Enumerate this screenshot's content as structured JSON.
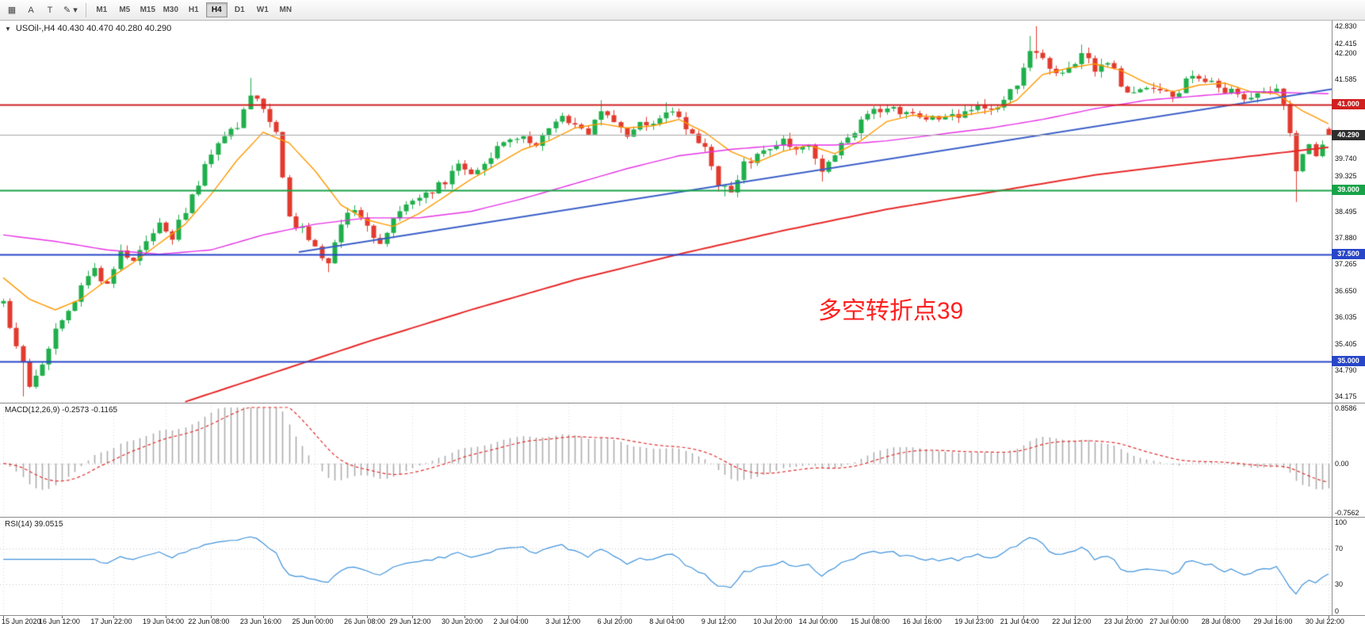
{
  "toolbar": {
    "tools": [
      {
        "name": "indicators-icon",
        "glyph": "▦"
      },
      {
        "name": "annotation-a-button",
        "glyph": "A"
      },
      {
        "name": "text-tool-button",
        "glyph": "T"
      },
      {
        "name": "draw-tools-button",
        "glyph": "✎ ▾"
      }
    ],
    "timeframes": [
      {
        "label": "M1",
        "active": false
      },
      {
        "label": "M5",
        "active": false
      },
      {
        "label": "M15",
        "active": false
      },
      {
        "label": "M30",
        "active": false
      },
      {
        "label": "H1",
        "active": false
      },
      {
        "label": "H4",
        "active": true
      },
      {
        "label": "D1",
        "active": false
      },
      {
        "label": "W1",
        "active": false
      },
      {
        "label": "MN",
        "active": false
      }
    ]
  },
  "chart": {
    "one_click_glyph": "▼",
    "title": "USOil-,H4 40.430 40.470 40.280 40.290",
    "annotation": {
      "text": "多空转折点39",
      "color": "#FF1F1F"
    },
    "price_axis": {
      "min": 34.03,
      "max": 42.96,
      "ticks": [
        "42.830",
        "42.415",
        "42.200",
        "41.585",
        "39.740",
        "39.325",
        "38.495",
        "37.880",
        "37.265",
        "36.650",
        "36.035",
        "35.405",
        "34.790",
        "34.175"
      ]
    },
    "current_price": {
      "value": 40.29,
      "label": "40.290",
      "badge_bg": "#2e2e2e",
      "line_color": "#a8a8a8"
    }
  },
  "chart_data": {
    "type": "candlestick",
    "symbol": "USOil-",
    "timeframe": "H4",
    "bars": 205,
    "seed": 20,
    "noise": 0.11,
    "last_ohlc": {
      "open": 40.43,
      "high": 40.47,
      "low": 40.28,
      "close": 40.29
    },
    "style": {
      "up_color": "#1FAF4B",
      "down_color": "#E23A2E"
    },
    "price_path": [
      [
        0,
        36.35
      ],
      [
        2,
        35.3
      ],
      [
        4,
        34.45
      ],
      [
        6,
        35.0
      ],
      [
        9,
        36.0
      ],
      [
        12,
        36.7
      ],
      [
        14,
        37.15
      ],
      [
        16,
        36.8
      ],
      [
        18,
        37.5
      ],
      [
        20,
        37.3
      ],
      [
        22,
        37.8
      ],
      [
        24,
        38.15
      ],
      [
        26,
        37.9
      ],
      [
        28,
        38.5
      ],
      [
        30,
        39.1
      ],
      [
        32,
        39.9
      ],
      [
        34,
        40.3
      ],
      [
        36,
        40.55
      ],
      [
        38,
        41.25
      ],
      [
        40,
        40.9
      ],
      [
        42,
        40.4
      ],
      [
        43,
        39.3
      ],
      [
        44,
        38.3
      ],
      [
        46,
        38.05
      ],
      [
        48,
        37.6
      ],
      [
        50,
        37.2
      ],
      [
        52,
        38.25
      ],
      [
        54,
        38.6
      ],
      [
        56,
        38.1
      ],
      [
        58,
        37.65
      ],
      [
        60,
        38.3
      ],
      [
        62,
        38.6
      ],
      [
        64,
        38.75
      ],
      [
        66,
        38.95
      ],
      [
        68,
        39.2
      ],
      [
        70,
        39.55
      ],
      [
        72,
        39.35
      ],
      [
        74,
        39.7
      ],
      [
        76,
        39.95
      ],
      [
        78,
        40.15
      ],
      [
        80,
        40.3
      ],
      [
        82,
        40.05
      ],
      [
        84,
        40.35
      ],
      [
        86,
        40.65
      ],
      [
        88,
        40.45
      ],
      [
        90,
        40.3
      ],
      [
        92,
        40.85
      ],
      [
        94,
        40.6
      ],
      [
        96,
        40.35
      ],
      [
        98,
        40.6
      ],
      [
        100,
        40.45
      ],
      [
        102,
        40.9
      ],
      [
        104,
        40.65
      ],
      [
        106,
        40.35
      ],
      [
        108,
        39.9
      ],
      [
        110,
        39.15
      ],
      [
        112,
        39.05
      ],
      [
        114,
        39.6
      ],
      [
        116,
        39.85
      ],
      [
        118,
        40.05
      ],
      [
        120,
        40.25
      ],
      [
        122,
        39.95
      ],
      [
        124,
        40.05
      ],
      [
        126,
        39.45
      ],
      [
        128,
        39.85
      ],
      [
        130,
        40.2
      ],
      [
        132,
        40.55
      ],
      [
        134,
        40.85
      ],
      [
        136,
        40.95
      ],
      [
        138,
        40.75
      ],
      [
        140,
        40.85
      ],
      [
        142,
        40.65
      ],
      [
        144,
        40.7
      ],
      [
        146,
        40.85
      ],
      [
        148,
        40.75
      ],
      [
        150,
        40.95
      ],
      [
        152,
        40.85
      ],
      [
        154,
        41.05
      ],
      [
        156,
        41.55
      ],
      [
        158,
        42.25
      ],
      [
        160,
        42.0
      ],
      [
        162,
        41.65
      ],
      [
        164,
        41.95
      ],
      [
        166,
        42.15
      ],
      [
        168,
        41.85
      ],
      [
        170,
        42.05
      ],
      [
        172,
        41.5
      ],
      [
        174,
        41.25
      ],
      [
        176,
        41.45
      ],
      [
        178,
        41.35
      ],
      [
        180,
        41.15
      ],
      [
        182,
        41.5
      ],
      [
        184,
        41.7
      ],
      [
        186,
        41.55
      ],
      [
        188,
        41.35
      ],
      [
        190,
        41.2
      ],
      [
        192,
        41.15
      ],
      [
        194,
        41.35
      ],
      [
        196,
        41.3
      ],
      [
        197,
        40.9
      ],
      [
        198,
        40.3
      ],
      [
        199,
        39.45
      ],
      [
        200,
        39.8
      ],
      [
        201,
        40.15
      ],
      [
        202,
        39.9
      ],
      [
        203,
        40.1
      ],
      [
        204,
        40.29
      ]
    ],
    "extremes": [
      {
        "bar": 3,
        "low": 34.175
      },
      {
        "bar": 38,
        "high": 41.62
      },
      {
        "bar": 50,
        "low": 37.08
      },
      {
        "bar": 92,
        "high": 41.1
      },
      {
        "bar": 102,
        "high": 41.05
      },
      {
        "bar": 111,
        "low": 38.85
      },
      {
        "bar": 126,
        "low": 39.2
      },
      {
        "bar": 158,
        "high": 42.6
      },
      {
        "bar": 159,
        "high": 42.83
      },
      {
        "bar": 166,
        "high": 42.4
      },
      {
        "bar": 199,
        "low": 38.72
      }
    ],
    "moving_averages": [
      {
        "name": "fast-ma-orange",
        "color": "#FF9900",
        "width": 1.4,
        "path": [
          [
            0,
            36.95
          ],
          [
            4,
            36.45
          ],
          [
            8,
            36.2
          ],
          [
            12,
            36.45
          ],
          [
            16,
            36.9
          ],
          [
            20,
            37.3
          ],
          [
            24,
            37.75
          ],
          [
            28,
            38.2
          ],
          [
            32,
            38.9
          ],
          [
            36,
            39.7
          ],
          [
            40,
            40.35
          ],
          [
            44,
            40.1
          ],
          [
            48,
            39.45
          ],
          [
            52,
            38.65
          ],
          [
            56,
            38.3
          ],
          [
            60,
            38.15
          ],
          [
            64,
            38.45
          ],
          [
            68,
            38.85
          ],
          [
            72,
            39.25
          ],
          [
            76,
            39.6
          ],
          [
            80,
            39.95
          ],
          [
            84,
            40.15
          ],
          [
            88,
            40.45
          ],
          [
            92,
            40.55
          ],
          [
            96,
            40.45
          ],
          [
            100,
            40.5
          ],
          [
            104,
            40.65
          ],
          [
            108,
            40.35
          ],
          [
            112,
            39.9
          ],
          [
            116,
            39.65
          ],
          [
            120,
            39.9
          ],
          [
            124,
            40.05
          ],
          [
            128,
            39.85
          ],
          [
            132,
            40.15
          ],
          [
            136,
            40.6
          ],
          [
            140,
            40.75
          ],
          [
            144,
            40.7
          ],
          [
            148,
            40.75
          ],
          [
            152,
            40.85
          ],
          [
            156,
            41.1
          ],
          [
            160,
            41.7
          ],
          [
            164,
            41.85
          ],
          [
            168,
            41.95
          ],
          [
            172,
            41.8
          ],
          [
            176,
            41.5
          ],
          [
            180,
            41.3
          ],
          [
            184,
            41.45
          ],
          [
            188,
            41.5
          ],
          [
            192,
            41.3
          ],
          [
            196,
            41.25
          ],
          [
            200,
            40.85
          ],
          [
            204,
            40.55
          ]
        ]
      },
      {
        "name": "mid-ma-magenta",
        "color": "#E632E6",
        "width": 1.4,
        "path": [
          [
            0,
            37.95
          ],
          [
            8,
            37.8
          ],
          [
            16,
            37.6
          ],
          [
            24,
            37.5
          ],
          [
            32,
            37.6
          ],
          [
            40,
            37.95
          ],
          [
            48,
            38.2
          ],
          [
            56,
            38.35
          ],
          [
            64,
            38.35
          ],
          [
            72,
            38.5
          ],
          [
            80,
            38.8
          ],
          [
            88,
            39.15
          ],
          [
            96,
            39.5
          ],
          [
            104,
            39.8
          ],
          [
            112,
            39.95
          ],
          [
            120,
            40.05
          ],
          [
            128,
            40.05
          ],
          [
            136,
            40.15
          ],
          [
            144,
            40.3
          ],
          [
            152,
            40.45
          ],
          [
            160,
            40.65
          ],
          [
            168,
            40.9
          ],
          [
            176,
            41.1
          ],
          [
            184,
            41.2
          ],
          [
            192,
            41.3
          ],
          [
            204,
            41.25
          ]
        ]
      },
      {
        "name": "slow-ma-red",
        "color": "#E82A2A",
        "width": 2,
        "path": [
          [
            28,
            34.05
          ],
          [
            40,
            34.65
          ],
          [
            56,
            35.45
          ],
          [
            72,
            36.2
          ],
          [
            88,
            36.9
          ],
          [
            104,
            37.5
          ],
          [
            120,
            38.05
          ],
          [
            136,
            38.55
          ],
          [
            152,
            38.95
          ],
          [
            168,
            39.35
          ],
          [
            184,
            39.65
          ],
          [
            204,
            40.0
          ]
        ]
      }
    ],
    "trendline": {
      "name": "support-trendline",
      "color": "#3A5FC8",
      "width": 2,
      "from": [
        46,
        37.55
      ],
      "to": [
        206,
        41.38
      ]
    },
    "horizontal_lines": [
      {
        "label": "41.000",
        "price": 41.0,
        "color": "#D02020",
        "width": 2
      },
      {
        "label": "39.000",
        "price": 39.0,
        "color": "#18A348",
        "width": 2
      },
      {
        "label": "37.500",
        "price": 37.5,
        "color": "#2846C8",
        "width": 2
      },
      {
        "label": "35.000",
        "price": 35.0,
        "color": "#2846C8",
        "width": 2
      }
    ]
  },
  "indicators": {
    "macd": {
      "label": "MACD(12,26,9) -0.2573 -0.1165",
      "fast": 12,
      "slow": 26,
      "signal": 9,
      "value_main": -0.2573,
      "value_signal": -0.1165,
      "axis": {
        "top": "0.8586",
        "zero": "0.00",
        "bottom": "-0.7562"
      },
      "range": [
        -0.7562,
        0.8586
      ],
      "hist_color": "#ADADAD",
      "signal_color": "#E03030"
    },
    "rsi": {
      "label": "RSI(14) 39.0515",
      "period": 14,
      "value": 39.0515,
      "levels": [
        70,
        30
      ],
      "axis": {
        "top": "100",
        "bottom": "0"
      },
      "line_color": "#4093DC"
    }
  },
  "time_axis": {
    "labels": [
      {
        "text": "15 Jun 2020",
        "bar": 0
      },
      {
        "text": "16 Jun 12:00",
        "bar": 9
      },
      {
        "text": "17 Jun 22:00",
        "bar": 17
      },
      {
        "text": "19 Jun 04:00",
        "bar": 25
      },
      {
        "text": "22 Jun 08:00",
        "bar": 32
      },
      {
        "text": "23 Jun 16:00",
        "bar": 40
      },
      {
        "text": "25 Jun 00:00",
        "bar": 48
      },
      {
        "text": "26 Jun 08:00",
        "bar": 56
      },
      {
        "text": "29 Jun 12:00",
        "bar": 63
      },
      {
        "text": "30 Jun 20:00",
        "bar": 71
      },
      {
        "text": "2 Jul 04:00",
        "bar": 79
      },
      {
        "text": "3 Jul 12:00",
        "bar": 87
      },
      {
        "text": "6 Jul 20:00",
        "bar": 95
      },
      {
        "text": "8 Jul 04:00",
        "bar": 103
      },
      {
        "text": "9 Jul 12:00",
        "bar": 111
      },
      {
        "text": "10 Jul 20:00",
        "bar": 119
      },
      {
        "text": "14 Jul 00:00",
        "bar": 126
      },
      {
        "text": "15 Jul 08:00",
        "bar": 134
      },
      {
        "text": "16 Jul 16:00",
        "bar": 142
      },
      {
        "text": "19 Jul 23:00",
        "bar": 150
      },
      {
        "text": "21 Jul 04:00",
        "bar": 157
      },
      {
        "text": "22 Jul 12:00",
        "bar": 165
      },
      {
        "text": "23 Jul 20:00",
        "bar": 173
      },
      {
        "text": "27 Jul 00:00",
        "bar": 180
      },
      {
        "text": "28 Jul 08:00",
        "bar": 188
      },
      {
        "text": "29 Jul 16:00",
        "bar": 196
      },
      {
        "text": "30 Jul 22:00",
        "bar": 204
      }
    ]
  }
}
